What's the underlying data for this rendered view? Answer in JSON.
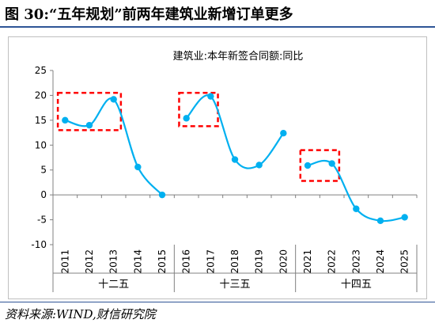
{
  "page": {
    "figure_title": "图 30:“五年规划”前两年建筑业新增订单更多",
    "source": "资料来源:WIND,财信研究院"
  },
  "chart_data": {
    "type": "line",
    "title": "建筑业:本年新签合同额:同比",
    "categories": [
      "2011",
      "2012",
      "2013",
      "2014",
      "2015",
      "2016",
      "2017",
      "2018",
      "2019",
      "2020",
      "2021",
      "2022",
      "2023",
      "2024",
      "2025"
    ],
    "series": [
      {
        "values": [
          15.0,
          14.0,
          19.2,
          5.6,
          0.0,
          15.4,
          19.8,
          7.1,
          6.0,
          12.4,
          5.9,
          6.3,
          -2.8,
          -5.2,
          -4.5
        ],
        "color": "#00b0f0"
      }
    ],
    "breaks": [
      5,
      10
    ],
    "yticks": [
      "25",
      "20",
      "15",
      "10",
      "5",
      "0",
      "-5",
      "-10"
    ],
    "ylim": [
      -10,
      25
    ],
    "groups": [
      {
        "label": "十二五",
        "start": 0,
        "end": 4
      },
      {
        "label": "十三五",
        "start": 5,
        "end": 9
      },
      {
        "label": "十四五",
        "start": 10,
        "end": 14
      }
    ],
    "highlight_boxes": [
      {
        "x_from": 0,
        "x_to": 2,
        "y_from": 13,
        "y_to": 20.5
      },
      {
        "x_from": 5,
        "x_to": 6,
        "y_from": 13.8,
        "y_to": 20.5
      },
      {
        "x_from": 10,
        "x_to": 11,
        "y_from": 2.8,
        "y_to": 9
      }
    ],
    "highlight_color": "#ff0000",
    "grid": false,
    "legend": "none"
  }
}
